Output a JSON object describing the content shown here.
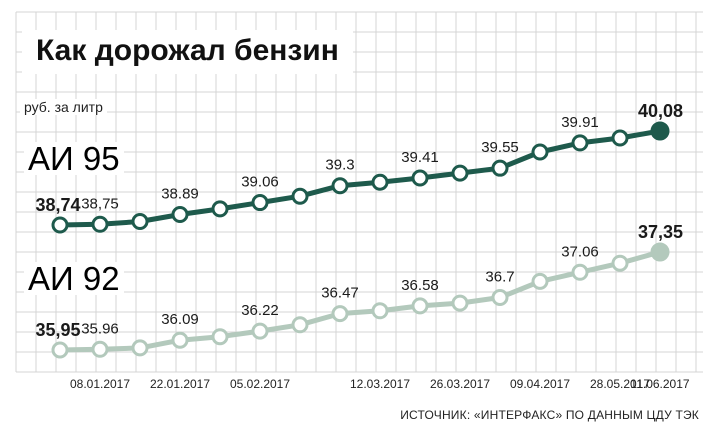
{
  "title": "Как дорожал бензин",
  "unit_label": "руб. за литр",
  "source": "ИСТОЧНИК: «ИНТЕРФАКС» ПО ДАННЫМ ЦДУ ТЭК",
  "colors": {
    "ai95": "#1e5a4c",
    "ai92": "#b3c9bc",
    "series_label": "#8b2b2b",
    "grid": "#d4d4d4",
    "text": "#222222"
  },
  "chart_data": {
    "type": "line",
    "title": "Как дорожал бензин",
    "ylabel": "руб. за литр",
    "grid": true,
    "x_ticks": [
      "08.01.2017",
      "22.01.2017",
      "05.02.2017",
      "12.03.2017",
      "26.03.2017",
      "09.04.2017",
      "28.05.2017",
      "11.06.2017"
    ],
    "series": [
      {
        "name": "АИ 95",
        "values": [
          38.74,
          38.75,
          38.79,
          38.89,
          38.97,
          39.06,
          39.15,
          39.3,
          39.35,
          39.41,
          39.48,
          39.55,
          39.78,
          39.91,
          39.98,
          40.08
        ],
        "labels": [
          "38,74",
          "38,75",
          "",
          "38.89",
          "",
          "39.06",
          "",
          "39.3",
          "",
          "39.41",
          "",
          "39.55",
          "",
          "39.91",
          "",
          "40,08"
        ]
      },
      {
        "name": "АИ 92",
        "values": [
          35.95,
          35.96,
          35.98,
          36.09,
          36.14,
          36.22,
          36.31,
          36.47,
          36.51,
          36.58,
          36.62,
          36.7,
          36.93,
          37.06,
          37.19,
          37.35
        ],
        "labels": [
          "35,95",
          "35.96",
          "",
          "36.09",
          "",
          "36.22",
          "",
          "36.47",
          "",
          "36.58",
          "",
          "36.7",
          "",
          "37.06",
          "",
          "37,35"
        ]
      }
    ]
  }
}
